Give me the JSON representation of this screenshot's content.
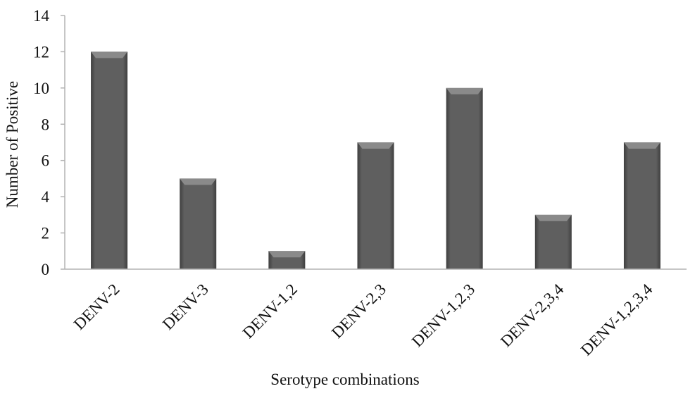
{
  "chart_data": {
    "type": "bar",
    "title": "",
    "xlabel": "Serotype combinations",
    "ylabel": "Number of Positive",
    "categories": [
      "DENV-2",
      "DENV-3",
      "DENV-1,2",
      "DENV-2,3",
      "DENV-1,2,3",
      "DENV-2,3,4",
      "DENV-1,2,3,4"
    ],
    "values": [
      12,
      5,
      1,
      7,
      10,
      3,
      7
    ],
    "ylim": [
      0,
      14
    ],
    "yticks": [
      0,
      2,
      4,
      6,
      8,
      10,
      12,
      14
    ],
    "grid": false,
    "legend": "none",
    "bar_color": "#5f5f5f",
    "bar_highlight": "#8a8a8a",
    "bar_shadow": "#3f3f3f",
    "axis_color": "#b3b3b3"
  }
}
